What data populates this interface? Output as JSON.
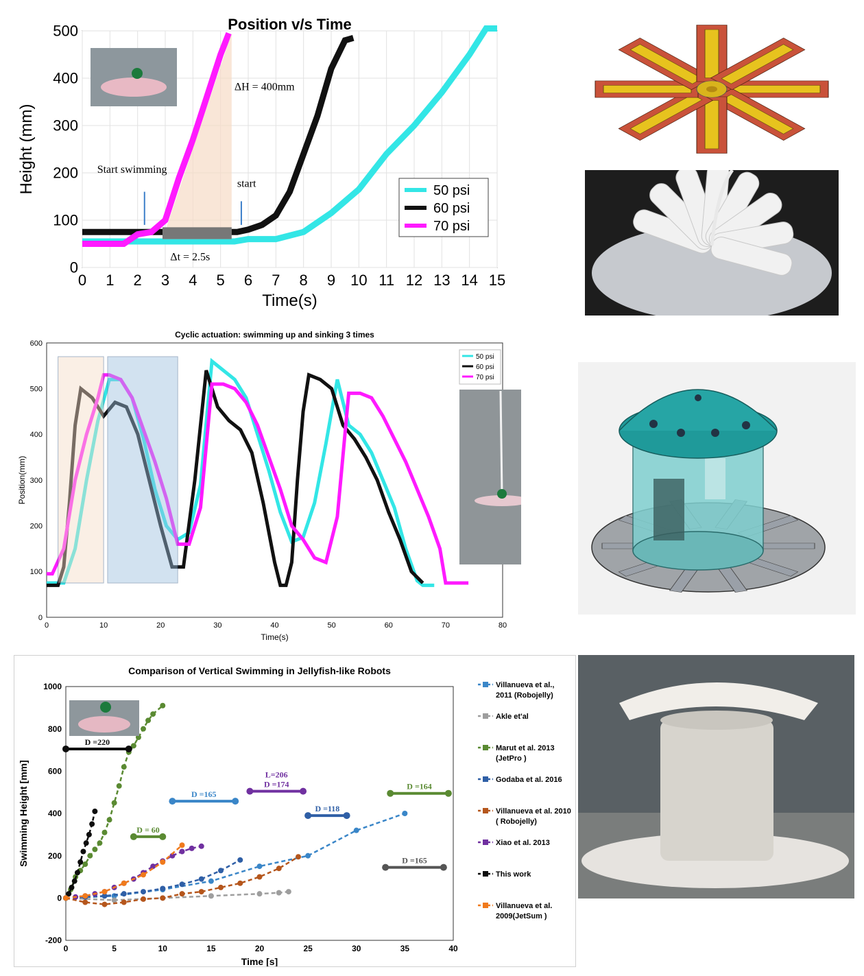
{
  "chart_data": [
    {
      "type": "line",
      "title": "Position v/s Time",
      "xlabel": "Time(s)",
      "ylabel": "Height (mm)",
      "xlim": [
        0,
        15
      ],
      "ylim": [
        0,
        500
      ],
      "xticks": [
        0,
        1,
        2,
        3,
        4,
        5,
        6,
        7,
        8,
        9,
        10,
        11,
        12,
        13,
        14,
        15
      ],
      "yticks": [
        0,
        100,
        200,
        300,
        400,
        500
      ],
      "grid": true,
      "legend_position": "right",
      "series": [
        {
          "name": "50 psi",
          "color": "#33e6e6",
          "x": [
            0,
            2,
            3,
            4,
            5,
            5.5,
            6,
            7,
            8,
            9,
            10,
            11,
            12,
            13,
            14,
            14.6,
            15
          ],
          "y": [
            55,
            55,
            55,
            55,
            55,
            55,
            60,
            60,
            75,
            115,
            165,
            240,
            300,
            370,
            450,
            505,
            505
          ]
        },
        {
          "name": "60 psi",
          "color": "#111111",
          "x": [
            0,
            1,
            2,
            3,
            4,
            5,
            5.6,
            6,
            6.5,
            7,
            7.5,
            8,
            8.5,
            9,
            9.5,
            9.8
          ],
          "y": [
            75,
            75,
            75,
            75,
            75,
            75,
            75,
            80,
            90,
            110,
            160,
            240,
            320,
            420,
            480,
            485
          ]
        },
        {
          "name": "70 psi",
          "color": "#ff1aff",
          "x": [
            0,
            1.5,
            2,
            2.5,
            3,
            3.5,
            4,
            4.5,
            5,
            5.3
          ],
          "y": [
            50,
            50,
            70,
            75,
            100,
            190,
            270,
            360,
            450,
            495
          ]
        }
      ],
      "annotations": [
        "Start swimming",
        "start",
        "ΔH = 400mm",
        "Δt = 2.5s"
      ]
    },
    {
      "type": "line",
      "title": "Cyclic actuation: swimming up and sinking 3 times",
      "xlabel": "Time(s)",
      "ylabel": "Position(mm)",
      "xlim": [
        0,
        80
      ],
      "ylim": [
        0,
        600
      ],
      "xticks": [
        0,
        10,
        20,
        30,
        40,
        50,
        60,
        70,
        80
      ],
      "yticks": [
        0,
        100,
        200,
        300,
        400,
        500,
        600
      ],
      "legend_position": "top-right",
      "series": [
        {
          "name": "50 psi",
          "color": "#33e6e6",
          "x": [
            0,
            3,
            5,
            7,
            9,
            11,
            13,
            15,
            17,
            19,
            21,
            23,
            25,
            27,
            29,
            31,
            33,
            35,
            37,
            39,
            41,
            43,
            45,
            47,
            49,
            51,
            53,
            55,
            57,
            59,
            61,
            63,
            65,
            66,
            68
          ],
          "y": [
            75,
            75,
            150,
            300,
            430,
            520,
            520,
            480,
            390,
            280,
            200,
            170,
            185,
            290,
            560,
            540,
            520,
            480,
            400,
            320,
            230,
            165,
            175,
            250,
            380,
            520,
            420,
            400,
            360,
            300,
            240,
            150,
            80,
            70,
            70
          ]
        },
        {
          "name": "60 psi",
          "color": "#111111",
          "x": [
            0,
            2,
            3,
            4,
            5,
            6,
            8,
            10,
            12,
            14,
            16,
            18,
            20,
            22,
            24,
            26,
            28,
            30,
            32,
            34,
            36,
            38,
            40,
            41,
            42,
            43,
            44,
            45,
            46,
            48,
            50,
            52,
            54,
            56,
            58,
            60,
            62,
            64,
            66
          ],
          "y": [
            70,
            70,
            110,
            250,
            420,
            500,
            480,
            440,
            470,
            460,
            400,
            300,
            200,
            110,
            110,
            300,
            540,
            460,
            430,
            410,
            360,
            250,
            120,
            70,
            70,
            120,
            300,
            450,
            530,
            520,
            500,
            420,
            390,
            350,
            300,
            230,
            170,
            100,
            75
          ]
        },
        {
          "name": "70 psi",
          "color": "#ff1aff",
          "x": [
            0,
            1,
            3,
            5,
            7,
            9,
            10,
            11,
            13,
            15,
            17,
            19,
            21,
            23,
            25,
            27,
            29,
            31,
            33,
            35,
            37,
            39,
            41,
            43,
            45,
            47,
            49,
            51,
            53,
            55,
            57,
            59,
            61,
            63,
            65,
            67,
            69,
            70,
            72,
            74
          ],
          "y": [
            95,
            95,
            150,
            300,
            400,
            480,
            530,
            530,
            520,
            480,
            410,
            340,
            260,
            160,
            160,
            240,
            510,
            510,
            500,
            470,
            420,
            350,
            280,
            200,
            170,
            130,
            120,
            220,
            490,
            490,
            480,
            440,
            390,
            340,
            280,
            220,
            150,
            75,
            75,
            75
          ]
        }
      ]
    },
    {
      "type": "line",
      "title": "Comparison of  Vertical Swimming in Jellyfish-like Robots",
      "xlabel": "Time  [s]",
      "ylabel": "Swimming Height  [mm]",
      "xlim": [
        0,
        40
      ],
      "ylim": [
        -200,
        1000
      ],
      "xticks": [
        0,
        5,
        10,
        15,
        20,
        25,
        30,
        35,
        40
      ],
      "yticks": [
        -200,
        0,
        200,
        400,
        600,
        800,
        1000
      ],
      "legend_position": "right",
      "series": [
        {
          "name": "Villanueva et al., 2011 (Robojelly)",
          "color": "#3a86c8",
          "x": [
            0,
            5,
            10,
            15,
            20,
            25,
            30,
            35
          ],
          "y": [
            0,
            10,
            40,
            80,
            150,
            200,
            320,
            400
          ]
        },
        {
          "name": "Akle et'al",
          "color": "#9e9e9e",
          "x": [
            0,
            5,
            10,
            15,
            20,
            22,
            23
          ],
          "y": [
            0,
            -10,
            0,
            10,
            20,
            25,
            30
          ]
        },
        {
          "name": "Marut et al. 2013 (JetPro )",
          "color": "#5a8a32",
          "x": [
            0,
            0.5,
            1,
            1.5,
            2,
            2.5,
            3,
            3.5,
            4,
            4.5,
            5,
            5.5,
            6,
            6.5,
            7,
            7.5,
            8,
            8.5,
            9,
            10
          ],
          "y": [
            0,
            40,
            100,
            130,
            160,
            200,
            230,
            260,
            310,
            370,
            450,
            530,
            620,
            690,
            720,
            760,
            800,
            840,
            870,
            910
          ]
        },
        {
          "name": "Godaba et al. 2016",
          "color": "#2f5fa6",
          "x": [
            0,
            2,
            4,
            6,
            8,
            10,
            12,
            14,
            16,
            18
          ],
          "y": [
            0,
            5,
            10,
            20,
            30,
            45,
            65,
            90,
            130,
            180
          ]
        },
        {
          "name": "Villanueva et al. 2010 ( Robojelly)",
          "color": "#b5561c",
          "x": [
            0,
            2,
            4,
            6,
            8,
            10,
            12,
            14,
            16,
            18,
            20,
            22,
            24
          ],
          "y": [
            0,
            -20,
            -30,
            -20,
            -5,
            0,
            20,
            30,
            50,
            70,
            100,
            140,
            195
          ]
        },
        {
          "name": "Xiao et al. 2013",
          "color": "#7030a0",
          "x": [
            0,
            1,
            2,
            3,
            4,
            5,
            6,
            7,
            8,
            9,
            10,
            11,
            12,
            13,
            14
          ],
          "y": [
            0,
            5,
            10,
            20,
            30,
            50,
            70,
            90,
            120,
            150,
            175,
            200,
            220,
            235,
            245
          ]
        },
        {
          "name": "This work",
          "color": "#0d0d0d",
          "x": [
            0,
            0.3,
            0.6,
            0.9,
            1.2,
            1.5,
            1.8,
            2.1,
            2.4,
            2.7,
            3
          ],
          "y": [
            0,
            20,
            50,
            80,
            120,
            170,
            220,
            260,
            300,
            350,
            410
          ]
        },
        {
          "name": "Villanueva et al. 2009(JetSum )",
          "color": "#f07a1c",
          "x": [
            0,
            2,
            4,
            6,
            8,
            10,
            12
          ],
          "y": [
            0,
            10,
            30,
            70,
            110,
            170,
            250
          ]
        }
      ],
      "annotations": [
        "D =220",
        "D = 60",
        "D =165",
        "D =174",
        "L=206",
        "D =118",
        "D =164",
        "D =165"
      ]
    }
  ]
}
